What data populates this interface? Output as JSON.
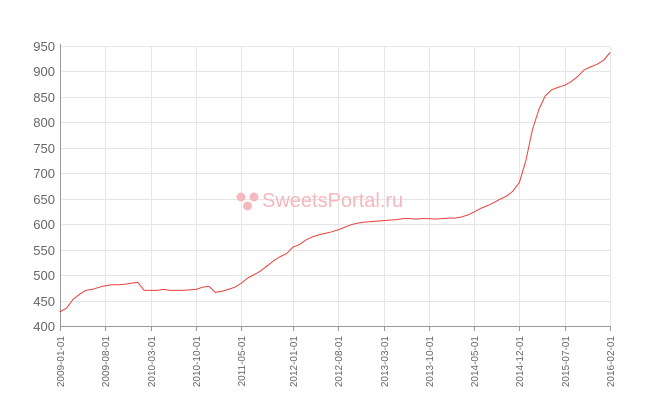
{
  "chart_data": {
    "type": "line",
    "title": "",
    "xlabel": "",
    "ylabel": "",
    "ylim": [
      400,
      950
    ],
    "y_ticks": [
      "950",
      "900",
      "850",
      "800",
      "750",
      "700",
      "650",
      "600",
      "550",
      "500",
      "450",
      "400"
    ],
    "x_ticks": [
      "2009-01-01",
      "2009-08-01",
      "2010-03-01",
      "2010-10-01",
      "2011-05-01",
      "2012-01-01",
      "2012-08-01",
      "2013-03-01",
      "2013-10-01",
      "2014-05-01",
      "2014-12-01",
      "2015-07-01",
      "2016-02-01"
    ],
    "xlim": [
      "2009-01-01",
      "2016-02-01"
    ],
    "grid": true,
    "colors": {
      "line": "#e8413a",
      "grid": "#e6e6e6",
      "axis": "#999999",
      "text": "#666666",
      "watermark": "#f4b8bf"
    },
    "series": [
      {
        "points": [
          [
            "2009-01-01",
            428
          ],
          [
            "2009-02-01",
            435
          ],
          [
            "2009-03-01",
            452
          ],
          [
            "2009-04-01",
            462
          ],
          [
            "2009-05-01",
            470
          ],
          [
            "2009-06-01",
            472
          ],
          [
            "2009-07-01",
            476
          ],
          [
            "2009-08-01",
            479
          ],
          [
            "2009-09-01",
            481
          ],
          [
            "2009-10-01",
            481
          ],
          [
            "2009-11-01",
            482
          ],
          [
            "2009-12-01",
            484
          ],
          [
            "2010-01-01",
            486
          ],
          [
            "2010-02-01",
            470
          ],
          [
            "2010-03-01",
            470
          ],
          [
            "2010-04-01",
            470
          ],
          [
            "2010-05-01",
            472
          ],
          [
            "2010-06-01",
            470
          ],
          [
            "2010-07-01",
            470
          ],
          [
            "2010-08-01",
            470
          ],
          [
            "2010-09-01",
            471
          ],
          [
            "2010-10-01",
            472
          ],
          [
            "2010-11-01",
            476
          ],
          [
            "2010-12-01",
            478
          ],
          [
            "2011-01-01",
            466
          ],
          [
            "2011-02-01",
            468
          ],
          [
            "2011-03-01",
            472
          ],
          [
            "2011-04-01",
            476
          ],
          [
            "2011-05-01",
            484
          ],
          [
            "2011-06-01",
            494
          ],
          [
            "2011-07-01",
            501
          ],
          [
            "2011-08-01",
            508
          ],
          [
            "2011-09-01",
            518
          ],
          [
            "2011-10-01",
            528
          ],
          [
            "2011-11-01",
            536
          ],
          [
            "2011-12-01",
            542
          ],
          [
            "2012-01-01",
            555
          ],
          [
            "2012-02-01",
            560
          ],
          [
            "2012-03-01",
            569
          ],
          [
            "2012-04-01",
            575
          ],
          [
            "2012-05-01",
            579
          ],
          [
            "2012-06-01",
            582
          ],
          [
            "2012-07-01",
            585
          ],
          [
            "2012-08-01",
            589
          ],
          [
            "2012-09-01",
            594
          ],
          [
            "2012-10-01",
            599
          ],
          [
            "2012-11-01",
            602
          ],
          [
            "2012-12-01",
            604
          ],
          [
            "2013-01-01",
            605
          ],
          [
            "2013-02-01",
            606
          ],
          [
            "2013-03-01",
            607
          ],
          [
            "2013-04-01",
            608
          ],
          [
            "2013-05-01",
            609
          ],
          [
            "2013-06-01",
            611
          ],
          [
            "2013-07-01",
            611
          ],
          [
            "2013-08-01",
            610
          ],
          [
            "2013-09-01",
            611
          ],
          [
            "2013-10-01",
            611
          ],
          [
            "2013-11-01",
            610
          ],
          [
            "2013-12-01",
            611
          ],
          [
            "2014-01-01",
            612
          ],
          [
            "2014-02-01",
            612
          ],
          [
            "2014-03-01",
            614
          ],
          [
            "2014-04-01",
            618
          ],
          [
            "2014-05-01",
            624
          ],
          [
            "2014-06-01",
            631
          ],
          [
            "2014-07-01",
            636
          ],
          [
            "2014-08-01",
            642
          ],
          [
            "2014-09-01",
            649
          ],
          [
            "2014-10-01",
            655
          ],
          [
            "2014-11-01",
            665
          ],
          [
            "2014-12-01",
            682
          ],
          [
            "2015-01-01",
            725
          ],
          [
            "2015-02-01",
            785
          ],
          [
            "2015-03-01",
            825
          ],
          [
            "2015-04-01",
            852
          ],
          [
            "2015-05-01",
            864
          ],
          [
            "2015-06-01",
            869
          ],
          [
            "2015-07-01",
            873
          ],
          [
            "2015-08-01",
            880
          ],
          [
            "2015-09-01",
            890
          ],
          [
            "2015-10-01",
            903
          ],
          [
            "2015-11-01",
            909
          ],
          [
            "2015-12-01",
            914
          ],
          [
            "2016-01-01",
            922
          ],
          [
            "2016-02-01",
            937
          ]
        ]
      }
    ]
  },
  "watermark": {
    "text": "SweetsPortal.ru"
  }
}
